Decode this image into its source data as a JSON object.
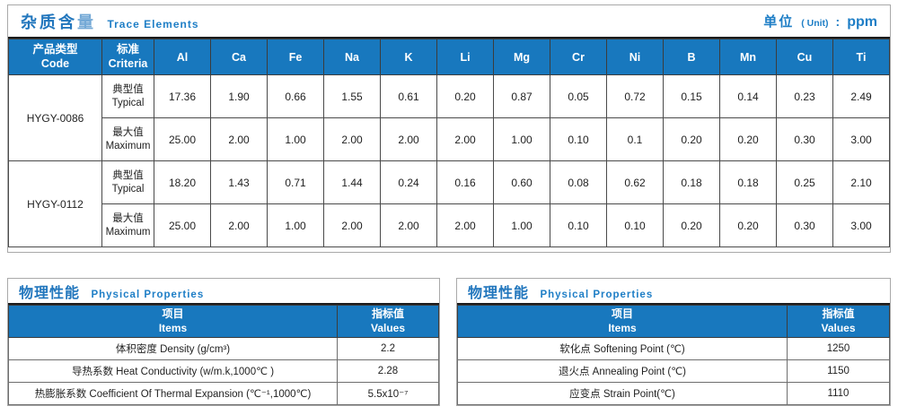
{
  "colors": {
    "accent_blue": "#1878be",
    "title_blue": "#2176bd",
    "title_blue_light": "#74a9d6",
    "grid_dark": "#4a4a4a",
    "panel_border": "#a9a9a9"
  },
  "trace": {
    "title_zh_main": "杂质含",
    "title_zh_last": "量",
    "title_en": "Trace Elements",
    "unit_zh": "单位",
    "unit_en": "( Unit)",
    "unit_sep": ":",
    "unit_value": "ppm",
    "col_code_zh": "产品类型",
    "col_code_en": "Code",
    "col_criteria_zh": "标准",
    "col_criteria_en": "Criteria",
    "elements": [
      "Al",
      "Ca",
      "Fe",
      "Na",
      "K",
      "Li",
      "Mg",
      "Cr",
      "Ni",
      "B",
      "Mn",
      "Cu",
      "Ti"
    ],
    "products": [
      {
        "code": "HYGY-0086",
        "rows": [
          {
            "label_zh": "典型值",
            "label_en": "Typical",
            "values": [
              "17.36",
              "1.90",
              "0.66",
              "1.55",
              "0.61",
              "0.20",
              "0.87",
              "0.05",
              "0.72",
              "0.15",
              "0.14",
              "0.23",
              "2.49"
            ]
          },
          {
            "label_zh": "最大值",
            "label_en": "Maximum",
            "values": [
              "25.00",
              "2.00",
              "1.00",
              "2.00",
              "2.00",
              "2.00",
              "1.00",
              "0.10",
              "0.1",
              "0.20",
              "0.20",
              "0.30",
              "3.00"
            ]
          }
        ]
      },
      {
        "code": "HYGY-0112",
        "rows": [
          {
            "label_zh": "典型值",
            "label_en": "Typical",
            "values": [
              "18.20",
              "1.43",
              "0.71",
              "1.44",
              "0.24",
              "0.16",
              "0.60",
              "0.08",
              "0.62",
              "0.18",
              "0.18",
              "0.25",
              "2.10"
            ]
          },
          {
            "label_zh": "最大值",
            "label_en": "Maximum",
            "values": [
              "25.00",
              "2.00",
              "1.00",
              "2.00",
              "2.00",
              "2.00",
              "1.00",
              "0.10",
              "0.10",
              "0.20",
              "0.20",
              "0.30",
              "3.00"
            ]
          }
        ]
      }
    ]
  },
  "physical_left": {
    "title_zh": "物理性能",
    "title_en": "Physical Properties",
    "col_item_zh": "项目",
    "col_item_en": "Items",
    "col_value_zh": "指标值",
    "col_value_en": "Values",
    "rows": [
      {
        "item": "体积密度 Density (g/cm³)",
        "value": "2.2"
      },
      {
        "item": "导热系数 Heat Conductivity (w/m.k,1000℃ )",
        "value": "2.28"
      },
      {
        "item": "热膨胀系数 Coefficient Of Thermal Expansion (℃⁻¹,1000℃)",
        "value": "5.5x10⁻⁷"
      }
    ]
  },
  "physical_right": {
    "title_zh": "物理性能",
    "title_en": "Physical Properties",
    "col_item_zh": "项目",
    "col_item_en": "Items",
    "col_value_zh": "指标值",
    "col_value_en": "Values",
    "rows": [
      {
        "item": "软化点 Softening Point (℃)",
        "value": "1250"
      },
      {
        "item": "退火点 Annealing Point (℃)",
        "value": "1150"
      },
      {
        "item": "应变点 Strain Point(℃)",
        "value": "1110"
      }
    ]
  }
}
